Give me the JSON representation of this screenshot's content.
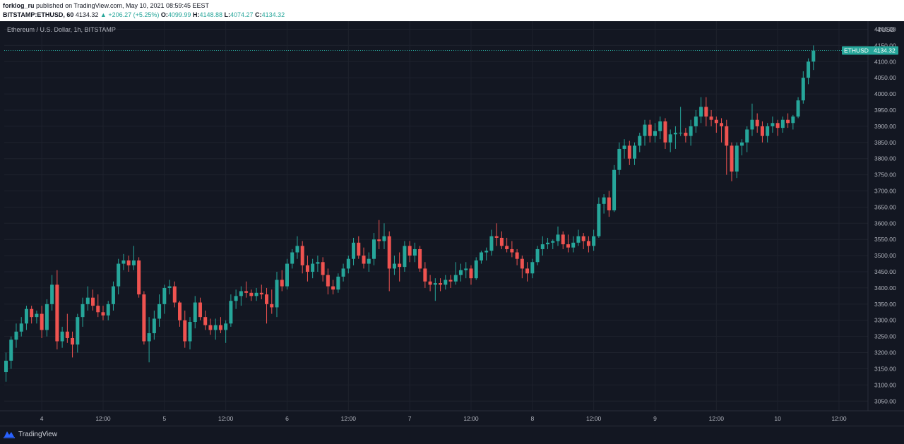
{
  "header": {
    "author": "forklog_ru",
    "published_text": "published on TradingView.com, May 10, 2021 08:59:45 EEST",
    "symbol_interval": "BITSTAMP:ETHUSD, 60",
    "last": "4134.32",
    "change": "▲ +206.27 (+5.25%)",
    "o_label": "O:",
    "o_value": "4099.99",
    "h_label": "H:",
    "h_value": "4148.88",
    "l_label": "L:",
    "l_value": "4074.27",
    "c_label": "C:",
    "c_value": "4134.32"
  },
  "chart_title": "Ethereum / U.S. Dollar, 1h, BITSTAMP",
  "axis_currency": "USD",
  "axis_top_partial": "4",
  "price_label": {
    "symbol": "ETHUSD",
    "value": "4134.32"
  },
  "footer": {
    "brand": "TradingView"
  },
  "colors": {
    "background": "#131722",
    "up": "#26a69a",
    "down": "#ef5350",
    "grid": "#1e222d",
    "text": "#d1d4dc"
  },
  "chart_data": {
    "type": "candlestick",
    "title": "Ethereum / U.S. Dollar, 1h, BITSTAMP",
    "ylabel": "USD",
    "ylim": [
      3020,
      4225
    ],
    "yticks": [
      3050,
      3100,
      3150,
      3200,
      3250,
      3300,
      3350,
      3400,
      3450,
      3500,
      3550,
      3600,
      3650,
      3700,
      3750,
      3800,
      3850,
      3900,
      3950,
      4000,
      4050,
      4100,
      4150,
      4200
    ],
    "ytick_labels": [
      "3050.00",
      "3100.00",
      "3150.00",
      "3200.00",
      "3250.00",
      "3300.00",
      "3350.00",
      "3400.00",
      "3450.00",
      "3500.00",
      "3550.00",
      "3600.00",
      "3650.00",
      "3700.00",
      "3750.00",
      "3800.00",
      "3850.00",
      "3900.00",
      "3950.00",
      "4000.00",
      "4050.00",
      "4100.00",
      "4150.00",
      "4200.00"
    ],
    "x_ticks": [
      {
        "label": "4",
        "bar": 7
      },
      {
        "label": "12:00",
        "bar": 19
      },
      {
        "label": "5",
        "bar": 31
      },
      {
        "label": "12:00",
        "bar": 43
      },
      {
        "label": "6",
        "bar": 55
      },
      {
        "label": "12:00",
        "bar": 67
      },
      {
        "label": "7",
        "bar": 79
      },
      {
        "label": "12:00",
        "bar": 91
      },
      {
        "label": "8",
        "bar": 103
      },
      {
        "label": "12:00",
        "bar": 115
      },
      {
        "label": "9",
        "bar": 127
      },
      {
        "label": "12:00",
        "bar": 139
      },
      {
        "label": "10",
        "bar": 151
      },
      {
        "label": "12:00",
        "bar": 163
      }
    ],
    "last_price": 4134.32,
    "candles": [
      [
        3140,
        3200,
        3110,
        3175
      ],
      [
        3175,
        3250,
        3150,
        3240
      ],
      [
        3240,
        3290,
        3215,
        3265
      ],
      [
        3265,
        3310,
        3250,
        3290
      ],
      [
        3290,
        3345,
        3270,
        3335
      ],
      [
        3335,
        3345,
        3290,
        3310
      ],
      [
        3310,
        3330,
        3290,
        3320
      ],
      [
        3320,
        3345,
        3245,
        3270
      ],
      [
        3270,
        3365,
        3250,
        3350
      ],
      [
        3350,
        3440,
        3330,
        3410
      ],
      [
        3410,
        3455,
        3210,
        3235
      ],
      [
        3235,
        3280,
        3215,
        3265
      ],
      [
        3265,
        3320,
        3230,
        3245
      ],
      [
        3245,
        3265,
        3185,
        3225
      ],
      [
        3225,
        3320,
        3200,
        3310
      ],
      [
        3310,
        3370,
        3280,
        3350
      ],
      [
        3350,
        3405,
        3330,
        3370
      ],
      [
        3370,
        3395,
        3330,
        3345
      ],
      [
        3345,
        3380,
        3310,
        3325
      ],
      [
        3325,
        3345,
        3300,
        3315
      ],
      [
        3315,
        3360,
        3300,
        3350
      ],
      [
        3350,
        3420,
        3330,
        3405
      ],
      [
        3405,
        3490,
        3380,
        3475
      ],
      [
        3475,
        3505,
        3455,
        3485
      ],
      [
        3485,
        3500,
        3450,
        3470
      ],
      [
        3470,
        3530,
        3455,
        3485
      ],
      [
        3485,
        3495,
        3370,
        3380
      ],
      [
        3380,
        3390,
        3225,
        3235
      ],
      [
        3235,
        3310,
        3170,
        3260
      ],
      [
        3260,
        3330,
        3240,
        3305
      ],
      [
        3305,
        3380,
        3280,
        3350
      ],
      [
        3350,
        3410,
        3320,
        3400
      ],
      [
        3400,
        3425,
        3380,
        3405
      ],
      [
        3405,
        3420,
        3340,
        3355
      ],
      [
        3355,
        3360,
        3280,
        3300
      ],
      [
        3300,
        3330,
        3215,
        3235
      ],
      [
        3235,
        3310,
        3210,
        3295
      ],
      [
        3295,
        3375,
        3275,
        3355
      ],
      [
        3355,
        3370,
        3300,
        3310
      ],
      [
        3310,
        3330,
        3270,
        3285
      ],
      [
        3285,
        3305,
        3255,
        3270
      ],
      [
        3270,
        3305,
        3240,
        3285
      ],
      [
        3285,
        3310,
        3260,
        3270
      ],
      [
        3270,
        3300,
        3230,
        3290
      ],
      [
        3290,
        3380,
        3280,
        3360
      ],
      [
        3360,
        3395,
        3335,
        3375
      ],
      [
        3375,
        3405,
        3345,
        3390
      ],
      [
        3390,
        3420,
        3370,
        3385
      ],
      [
        3385,
        3395,
        3360,
        3375
      ],
      [
        3375,
        3400,
        3360,
        3385
      ],
      [
        3385,
        3410,
        3365,
        3380
      ],
      [
        3380,
        3400,
        3290,
        3350
      ],
      [
        3350,
        3395,
        3320,
        3340
      ],
      [
        3340,
        3450,
        3310,
        3425
      ],
      [
        3425,
        3455,
        3390,
        3405
      ],
      [
        3405,
        3490,
        3395,
        3475
      ],
      [
        3475,
        3520,
        3460,
        3510
      ],
      [
        3510,
        3560,
        3490,
        3530
      ],
      [
        3530,
        3545,
        3445,
        3470
      ],
      [
        3470,
        3500,
        3420,
        3450
      ],
      [
        3450,
        3490,
        3430,
        3475
      ],
      [
        3475,
        3500,
        3450,
        3480
      ],
      [
        3480,
        3495,
        3420,
        3440
      ],
      [
        3440,
        3460,
        3380,
        3405
      ],
      [
        3405,
        3425,
        3380,
        3395
      ],
      [
        3395,
        3445,
        3385,
        3435
      ],
      [
        3435,
        3475,
        3420,
        3460
      ],
      [
        3460,
        3500,
        3445,
        3490
      ],
      [
        3490,
        3555,
        3470,
        3540
      ],
      [
        3540,
        3560,
        3490,
        3500
      ],
      [
        3500,
        3525,
        3460,
        3475
      ],
      [
        3475,
        3510,
        3450,
        3490
      ],
      [
        3490,
        3570,
        3470,
        3550
      ],
      [
        3550,
        3610,
        3520,
        3545
      ],
      [
        3545,
        3600,
        3520,
        3560
      ],
      [
        3560,
        3575,
        3390,
        3460
      ],
      [
        3460,
        3500,
        3440,
        3475
      ],
      [
        3475,
        3510,
        3420,
        3465
      ],
      [
        3465,
        3545,
        3450,
        3530
      ],
      [
        3530,
        3545,
        3480,
        3500
      ],
      [
        3500,
        3540,
        3480,
        3520
      ],
      [
        3520,
        3530,
        3450,
        3460
      ],
      [
        3460,
        3480,
        3400,
        3420
      ],
      [
        3420,
        3440,
        3390,
        3410
      ],
      [
        3410,
        3430,
        3360,
        3415
      ],
      [
        3415,
        3430,
        3390,
        3410
      ],
      [
        3410,
        3440,
        3395,
        3425
      ],
      [
        3425,
        3440,
        3400,
        3420
      ],
      [
        3420,
        3480,
        3410,
        3440
      ],
      [
        3440,
        3475,
        3420,
        3455
      ],
      [
        3455,
        3480,
        3430,
        3460
      ],
      [
        3460,
        3470,
        3410,
        3430
      ],
      [
        3430,
        3495,
        3425,
        3485
      ],
      [
        3485,
        3515,
        3475,
        3510
      ],
      [
        3510,
        3525,
        3485,
        3515
      ],
      [
        3515,
        3580,
        3500,
        3560
      ],
      [
        3560,
        3600,
        3530,
        3555
      ],
      [
        3555,
        3575,
        3520,
        3530
      ],
      [
        3530,
        3555,
        3510,
        3520
      ],
      [
        3520,
        3545,
        3495,
        3510
      ],
      [
        3510,
        3520,
        3470,
        3490
      ],
      [
        3490,
        3500,
        3430,
        3460
      ],
      [
        3460,
        3480,
        3420,
        3445
      ],
      [
        3445,
        3490,
        3430,
        3480
      ],
      [
        3480,
        3530,
        3470,
        3520
      ],
      [
        3520,
        3560,
        3500,
        3535
      ],
      [
        3535,
        3555,
        3520,
        3540
      ],
      [
        3540,
        3550,
        3520,
        3545
      ],
      [
        3545,
        3590,
        3530,
        3565
      ],
      [
        3565,
        3575,
        3520,
        3535
      ],
      [
        3535,
        3565,
        3510,
        3525
      ],
      [
        3525,
        3560,
        3510,
        3540
      ],
      [
        3540,
        3580,
        3530,
        3560
      ],
      [
        3560,
        3570,
        3520,
        3545
      ],
      [
        3545,
        3560,
        3510,
        3530
      ],
      [
        3530,
        3580,
        3515,
        3560
      ],
      [
        3560,
        3680,
        3555,
        3660
      ],
      [
        3660,
        3690,
        3630,
        3680
      ],
      [
        3680,
        3700,
        3620,
        3640
      ],
      [
        3640,
        3780,
        3635,
        3765
      ],
      [
        3765,
        3850,
        3750,
        3830
      ],
      [
        3830,
        3860,
        3800,
        3840
      ],
      [
        3840,
        3855,
        3780,
        3800
      ],
      [
        3800,
        3850,
        3780,
        3840
      ],
      [
        3840,
        3880,
        3820,
        3870
      ],
      [
        3870,
        3920,
        3840,
        3905
      ],
      [
        3905,
        3920,
        3850,
        3870
      ],
      [
        3870,
        3910,
        3850,
        3885
      ],
      [
        3885,
        3930,
        3860,
        3915
      ],
      [
        3915,
        3925,
        3830,
        3850
      ],
      [
        3850,
        3890,
        3820,
        3875
      ],
      [
        3875,
        3900,
        3830,
        3880
      ],
      [
        3880,
        3960,
        3870,
        3880
      ],
      [
        3880,
        3895,
        3850,
        3870
      ],
      [
        3870,
        3920,
        3840,
        3900
      ],
      [
        3900,
        3950,
        3880,
        3930
      ],
      [
        3930,
        3990,
        3910,
        3960
      ],
      [
        3960,
        3990,
        3900,
        3930
      ],
      [
        3930,
        3950,
        3900,
        3920
      ],
      [
        3920,
        3930,
        3880,
        3910
      ],
      [
        3910,
        3925,
        3850,
        3900
      ],
      [
        3900,
        3920,
        3750,
        3840
      ],
      [
        3840,
        3850,
        3730,
        3760
      ],
      [
        3760,
        3850,
        3740,
        3840
      ],
      [
        3840,
        3860,
        3810,
        3850
      ],
      [
        3850,
        3900,
        3820,
        3890
      ],
      [
        3890,
        3970,
        3870,
        3920
      ],
      [
        3920,
        3940,
        3880,
        3900
      ],
      [
        3900,
        3915,
        3850,
        3870
      ],
      [
        3870,
        3910,
        3850,
        3900
      ],
      [
        3900,
        3930,
        3880,
        3910
      ],
      [
        3910,
        3920,
        3870,
        3895
      ],
      [
        3895,
        3930,
        3880,
        3920
      ],
      [
        3920,
        3940,
        3895,
        3910
      ],
      [
        3910,
        3935,
        3890,
        3930
      ],
      [
        3930,
        3990,
        3925,
        3980
      ],
      [
        3980,
        4070,
        3970,
        4050
      ],
      [
        4050,
        4110,
        4030,
        4100
      ],
      [
        4100,
        4150,
        4074,
        4134
      ]
    ]
  }
}
